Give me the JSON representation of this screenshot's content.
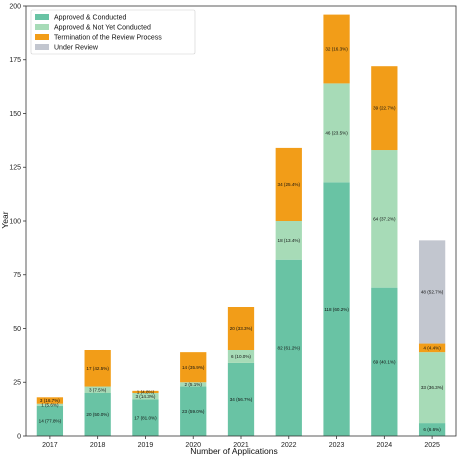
{
  "chart_data": {
    "type": "bar",
    "stacked": true,
    "categories": [
      "2017",
      "2018",
      "2019",
      "2020",
      "2021",
      "2022",
      "2023",
      "2024",
      "2025"
    ],
    "xlabel": "Number of Applications",
    "ylabel": "Year",
    "ylim": [
      0,
      200
    ],
    "yticks": [
      0,
      25,
      50,
      75,
      100,
      125,
      150,
      175,
      200
    ],
    "grid": false,
    "legend_position": "top-left",
    "series": [
      {
        "name": "Approved & Conducted",
        "color": "#69c3a4",
        "values": [
          14,
          20,
          17,
          23,
          34,
          82,
          118,
          69,
          6
        ],
        "labels": [
          "14 (77.8%)",
          "20 (50.0%)",
          "17 (81.0%)",
          "23 (59.0%)",
          "34 (56.7%)",
          "82 (61.2%)",
          "118 (60.2%)",
          "69 (40.1%)",
          "6 (6.6%)"
        ]
      },
      {
        "name": "Approved & Not Yet Conducted",
        "color": "#a7dbb7",
        "values": [
          1,
          3,
          3,
          2,
          6,
          18,
          46,
          64,
          33
        ],
        "labels": [
          "1 (5.6%)",
          "3 (7.5%)",
          "3 (14.3%)",
          "2 (5.1%)",
          "6 (10.0%)",
          "18 (13.4%)",
          "46 (23.5%)",
          "64 (37.2%)",
          "33 (36.3%)"
        ]
      },
      {
        "name": "Termination of the Review Process",
        "color": "#f29d18",
        "values": [
          3,
          17,
          1,
          14,
          20,
          34,
          32,
          39,
          4
        ],
        "labels": [
          "3 (16.7%)",
          "17 (42.5%)",
          "1 (4.8%)",
          "14 (35.9%)",
          "20 (33.3%)",
          "34 (25.4%)",
          "32 (16.3%)",
          "39 (22.7%)",
          "4 (4.4%)"
        ]
      },
      {
        "name": "Under Review",
        "color": "#c2c6cf",
        "values": [
          0,
          0,
          0,
          0,
          0,
          0,
          0,
          0,
          48
        ],
        "labels": [
          "",
          "",
          "",
          "",
          "",
          "",
          "",
          "",
          "48 (52.7%)"
        ]
      }
    ]
  }
}
